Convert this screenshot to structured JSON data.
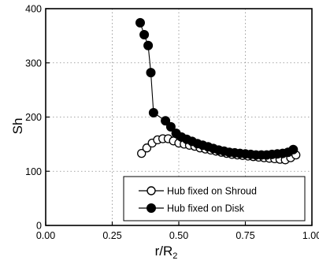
{
  "chart_data": {
    "type": "scatter",
    "title": "",
    "xlabel": "r/R",
    "xlabel_subscript": "2",
    "ylabel": "Sh",
    "xlim": [
      0.0,
      1.0
    ],
    "ylim": [
      0,
      400
    ],
    "x_ticks": [
      "0.00",
      "0.25",
      "0.50",
      "0.75",
      "1.00"
    ],
    "y_ticks": [
      "0",
      "100",
      "200",
      "300",
      "400"
    ],
    "grid": true,
    "legend_position": "bottom-right",
    "series": [
      {
        "name": "Hub fixed on Shroud",
        "marker": "open-circle",
        "connected": true,
        "color": "#000000",
        "points": [
          [
            0.36,
            133
          ],
          [
            0.38,
            143
          ],
          [
            0.4,
            152
          ],
          [
            0.42,
            158
          ],
          [
            0.44,
            160
          ],
          [
            0.46,
            160
          ],
          [
            0.48,
            156
          ],
          [
            0.5,
            152
          ],
          [
            0.52,
            150
          ],
          [
            0.54,
            148
          ],
          [
            0.56,
            146
          ],
          [
            0.58,
            143
          ],
          [
            0.6,
            141
          ],
          [
            0.62,
            139
          ],
          [
            0.64,
            137
          ],
          [
            0.66,
            135
          ],
          [
            0.68,
            133
          ],
          [
            0.7,
            131
          ],
          [
            0.72,
            130
          ],
          [
            0.74,
            129
          ],
          [
            0.76,
            128
          ],
          [
            0.78,
            127
          ],
          [
            0.8,
            126
          ],
          [
            0.82,
            125
          ],
          [
            0.84,
            124
          ],
          [
            0.86,
            123
          ],
          [
            0.88,
            122
          ],
          [
            0.9,
            121
          ],
          [
            0.92,
            125
          ],
          [
            0.94,
            130
          ]
        ]
      },
      {
        "name": "Hub fixed on Disk",
        "marker": "filled-circle",
        "connected": true,
        "color": "#000000",
        "points": [
          [
            0.355,
            374
          ],
          [
            0.37,
            352
          ],
          [
            0.385,
            332
          ],
          [
            0.395,
            282
          ],
          [
            0.405,
            208
          ],
          [
            0.45,
            193
          ],
          [
            0.47,
            182
          ],
          [
            0.49,
            170
          ],
          [
            0.51,
            163
          ],
          [
            0.53,
            159
          ],
          [
            0.55,
            155
          ],
          [
            0.57,
            151
          ],
          [
            0.59,
            148
          ],
          [
            0.61,
            145
          ],
          [
            0.63,
            142
          ],
          [
            0.65,
            139
          ],
          [
            0.67,
            137
          ],
          [
            0.69,
            135
          ],
          [
            0.71,
            134
          ],
          [
            0.73,
            133
          ],
          [
            0.75,
            132
          ],
          [
            0.77,
            131
          ],
          [
            0.79,
            130
          ],
          [
            0.81,
            130
          ],
          [
            0.83,
            130
          ],
          [
            0.85,
            131
          ],
          [
            0.87,
            132
          ],
          [
            0.89,
            133
          ],
          [
            0.91,
            135
          ],
          [
            0.93,
            140
          ]
        ]
      }
    ]
  }
}
